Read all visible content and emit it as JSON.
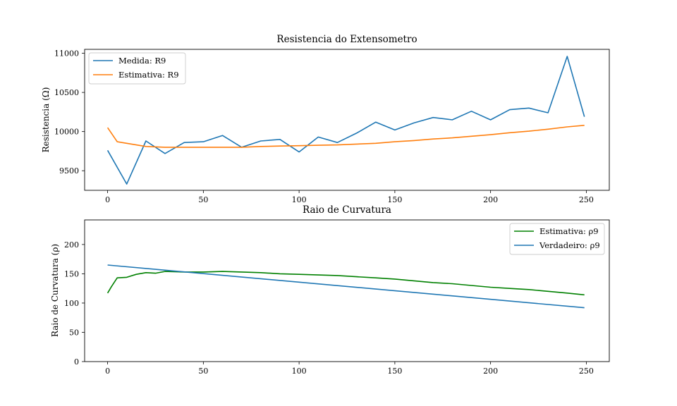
{
  "chart_data": [
    {
      "type": "line",
      "title": "Resistencia do Extensometro",
      "xlabel": "",
      "ylabel": "Resistencia (Ω)",
      "xlim": [
        -12,
        262
      ],
      "ylim": [
        9250,
        11050
      ],
      "xticks": [
        0,
        50,
        100,
        150,
        200,
        250
      ],
      "yticks": [
        9500,
        10000,
        10500,
        11000
      ],
      "grid": false,
      "legend": "top-left",
      "series": [
        {
          "name": "Medida: R9",
          "color": "#1f77b4",
          "x": [
            0,
            10,
            20,
            30,
            40,
            50,
            60,
            70,
            80,
            90,
            100,
            110,
            120,
            130,
            140,
            150,
            160,
            170,
            180,
            190,
            200,
            210,
            220,
            230,
            240,
            249
          ],
          "y": [
            9760,
            9330,
            9880,
            9720,
            9860,
            9870,
            9950,
            9800,
            9880,
            9900,
            9740,
            9930,
            9860,
            9980,
            10120,
            10020,
            10110,
            10180,
            10150,
            10260,
            10150,
            10280,
            10300,
            10240,
            10960,
            10190
          ]
        },
        {
          "name": "Estimativa: R9",
          "color": "#ff7f0e",
          "x": [
            0,
            5,
            10,
            20,
            30,
            40,
            50,
            60,
            70,
            80,
            90,
            100,
            110,
            120,
            130,
            140,
            150,
            160,
            170,
            180,
            190,
            200,
            210,
            220,
            230,
            240,
            249
          ],
          "y": [
            10050,
            9870,
            9850,
            9810,
            9800,
            9800,
            9800,
            9800,
            9800,
            9810,
            9815,
            9820,
            9825,
            9830,
            9840,
            9850,
            9870,
            9885,
            9905,
            9920,
            9940,
            9960,
            9985,
            10005,
            10030,
            10060,
            10080
          ]
        }
      ]
    },
    {
      "type": "line",
      "title": "Raio de Curvatura",
      "xlabel": "",
      "ylabel": "Raio de Curvatura (ρ)",
      "xlim": [
        -12,
        262
      ],
      "ylim": [
        0,
        242
      ],
      "xticks": [
        0,
        50,
        100,
        150,
        200,
        250
      ],
      "yticks": [
        0,
        50,
        100,
        150,
        200
      ],
      "grid": false,
      "legend": "top-right",
      "series": [
        {
          "name": "Estimativa: ρ9",
          "color": "#008000",
          "x": [
            0,
            2,
            5,
            10,
            15,
            20,
            25,
            30,
            40,
            50,
            60,
            70,
            80,
            90,
            100,
            110,
            120,
            130,
            140,
            150,
            160,
            170,
            180,
            190,
            200,
            210,
            220,
            230,
            240,
            249
          ],
          "y": [
            117,
            128,
            143,
            144,
            149,
            152,
            151,
            154,
            153,
            153,
            154,
            153,
            152,
            150,
            149,
            148,
            147,
            145,
            143,
            141,
            138,
            135,
            133,
            130,
            127,
            125,
            123,
            120,
            117,
            114
          ]
        },
        {
          "name": "Verdadeiro: ρ9",
          "color": "#1f77b4",
          "x": [
            0,
            249
          ],
          "y": [
            165,
            92
          ]
        }
      ]
    }
  ]
}
